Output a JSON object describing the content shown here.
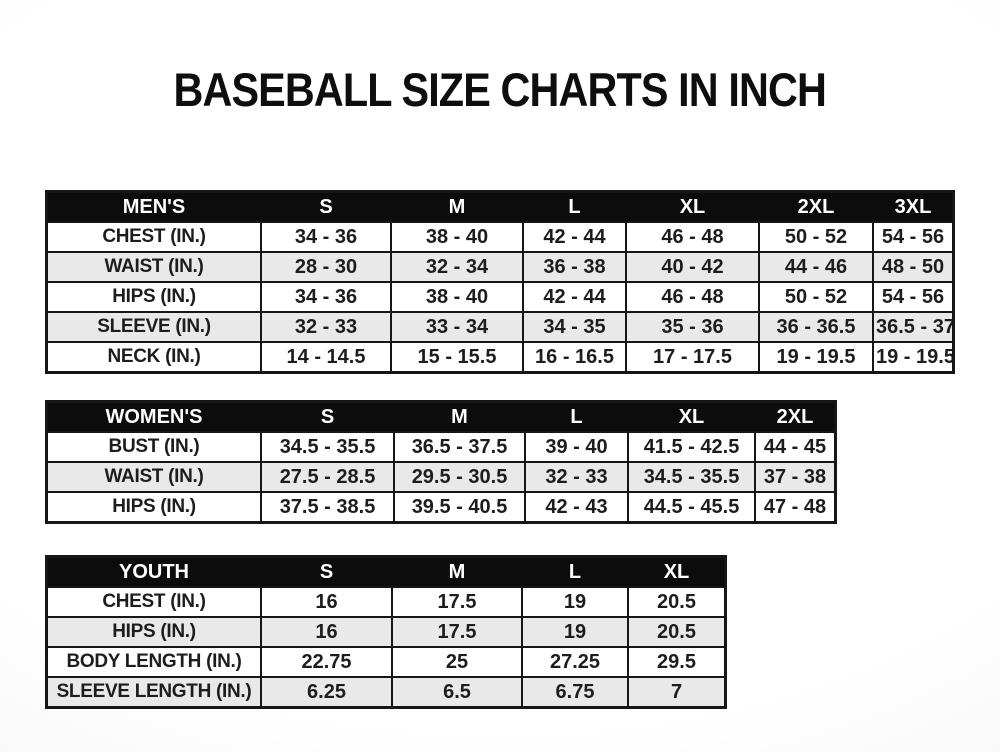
{
  "page": {
    "title": "BASEBALL SIZE CHARTS IN INCH"
  },
  "colors": {
    "header_bg": "#0c0c0c",
    "header_text": "#ffffff",
    "row_stripe": "#e9e9e9",
    "row_plain": "#ffffff",
    "border": "#161616",
    "text": "#1d1d1d",
    "background": "#ffffff"
  },
  "chart_data": [
    {
      "type": "table",
      "name": "mens-sizes",
      "title": "MEN'S",
      "unit": "inches",
      "columns": [
        "MEN'S",
        "S",
        "M",
        "L",
        "XL",
        "2XL",
        "3XL"
      ],
      "rows": [
        [
          "CHEST (IN.)",
          "34 - 36",
          "38 - 40",
          "42 - 44",
          "46 - 48",
          "50 - 52",
          "54 - 56"
        ],
        [
          "WAIST (IN.)",
          "28 - 30",
          "32 - 34",
          "36 - 38",
          "40 - 42",
          "44 - 46",
          "48 - 50"
        ],
        [
          "HIPS (IN.)",
          "34 - 36",
          "38 - 40",
          "42 - 44",
          "46 - 48",
          "50 - 52",
          "54 - 56"
        ],
        [
          "SLEEVE (IN.)",
          "32 - 33",
          "33 - 34",
          "34 - 35",
          "35 - 36",
          "36 - 36.5",
          "36.5 - 37"
        ],
        [
          "NECK (IN.)",
          "14 - 14.5",
          "15 - 15.5",
          "16 - 16.5",
          "17 - 17.5",
          "19 - 19.5",
          "19 - 19.5"
        ]
      ]
    },
    {
      "type": "table",
      "name": "womens-sizes",
      "title": "WOMEN'S",
      "unit": "inches",
      "columns": [
        "WOMEN'S",
        "S",
        "M",
        "L",
        "XL",
        "2XL"
      ],
      "rows": [
        [
          "BUST (IN.)",
          "34.5 - 35.5",
          "36.5 - 37.5",
          "39 - 40",
          "41.5 - 42.5",
          "44 - 45"
        ],
        [
          "WAIST (IN.)",
          "27.5 - 28.5",
          "29.5 - 30.5",
          "32 - 33",
          "34.5 - 35.5",
          "37 - 38"
        ],
        [
          "HIPS (IN.)",
          "37.5 - 38.5",
          "39.5 - 40.5",
          "42 - 43",
          "44.5 - 45.5",
          "47 - 48"
        ]
      ]
    },
    {
      "type": "table",
      "name": "youth-sizes",
      "title": "YOUTH",
      "unit": "inches",
      "columns": [
        "YOUTH",
        "S",
        "M",
        "L",
        "XL"
      ],
      "rows": [
        [
          "CHEST (IN.)",
          "16",
          "17.5",
          "19",
          "20.5"
        ],
        [
          "HIPS (IN.)",
          "16",
          "17.5",
          "19",
          "20.5"
        ],
        [
          "BODY LENGTH (IN.)",
          "22.75",
          "25",
          "27.25",
          "29.5"
        ],
        [
          "SLEEVE LENGTH (IN.)",
          "6.25",
          "6.5",
          "6.75",
          "7"
        ]
      ]
    }
  ]
}
